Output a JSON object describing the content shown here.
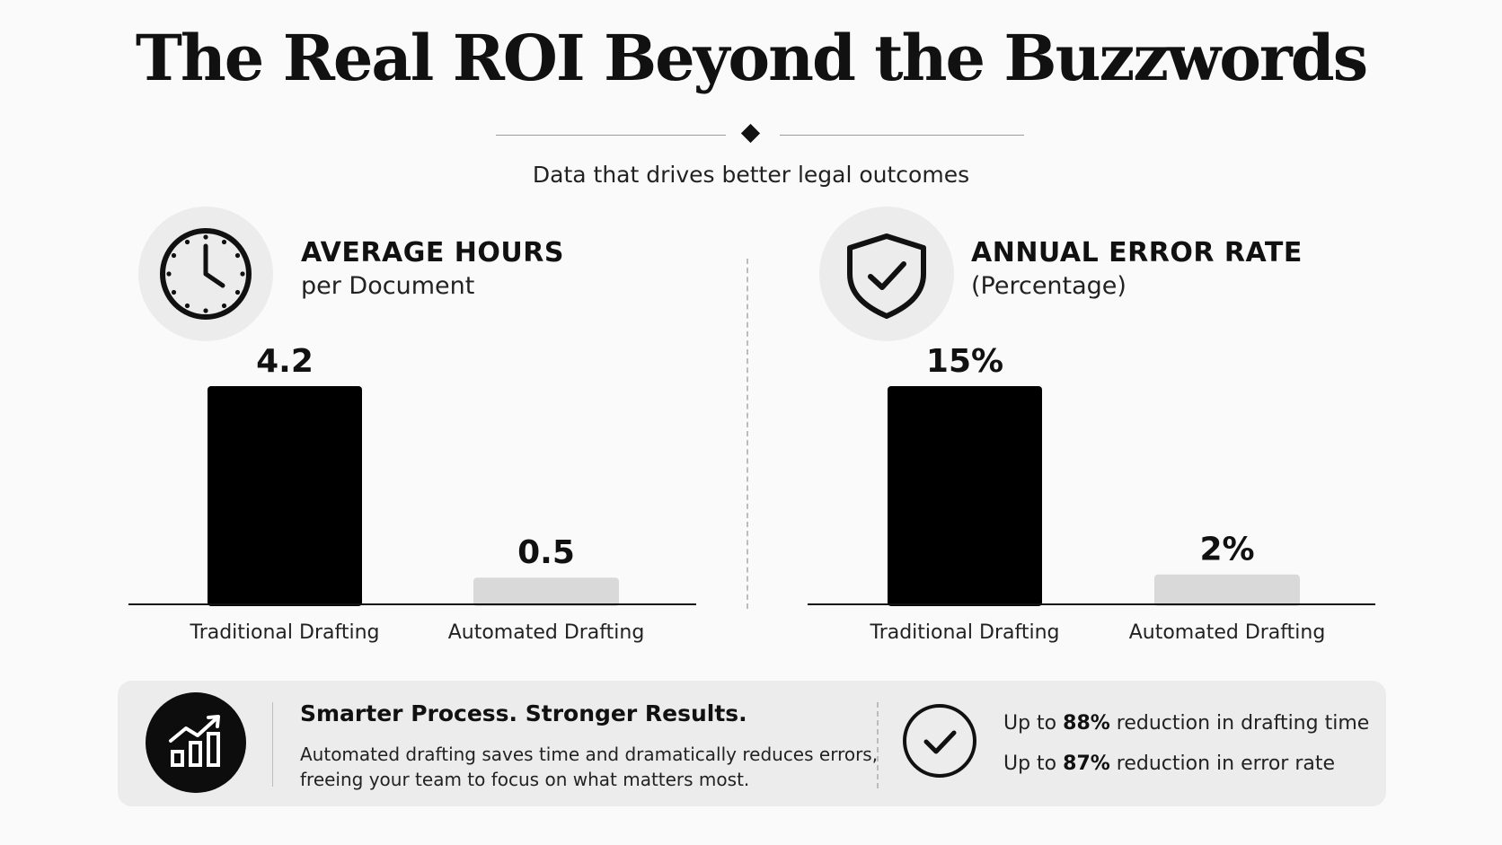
{
  "header": {
    "title": "The Real ROI Beyond the Buzzwords",
    "subtitle": "Data that drives better legal outcomes"
  },
  "chart_data": [
    {
      "type": "bar",
      "title": "AVERAGE HOURS",
      "subtitle": "per Document",
      "icon": "clock-icon",
      "categories": [
        "Traditional Drafting",
        "Automated Drafting"
      ],
      "values": [
        4.2,
        0.5
      ],
      "value_labels": [
        "4.2",
        "0.5"
      ],
      "colors": [
        "#000000",
        "#d9d9d9"
      ],
      "ylim": [
        0,
        4.2
      ],
      "grid": false
    },
    {
      "type": "bar",
      "title": "ANNUAL ERROR RATE",
      "subtitle": "(Percentage)",
      "icon": "shield-check-icon",
      "categories": [
        "Traditional Drafting",
        "Automated Drafting"
      ],
      "values": [
        15,
        2
      ],
      "value_labels": [
        "15%",
        "2%"
      ],
      "colors": [
        "#000000",
        "#d9d9d9"
      ],
      "ylim": [
        0,
        15
      ],
      "grid": false
    }
  ],
  "summary": {
    "icon": "growth-chart-icon",
    "title": "Smarter Process. Stronger Results.",
    "description_line1": "Automated drafting saves time and dramatically reduces errors,",
    "description_line2": "freeing your team to focus on what matters most.",
    "check_icon": "check-circle-icon",
    "stats": [
      {
        "prefix": "Up to ",
        "value": "88%",
        "suffix": " reduction in drafting time"
      },
      {
        "prefix": "Up to ",
        "value": "87%",
        "suffix": " reduction in error rate"
      }
    ]
  }
}
